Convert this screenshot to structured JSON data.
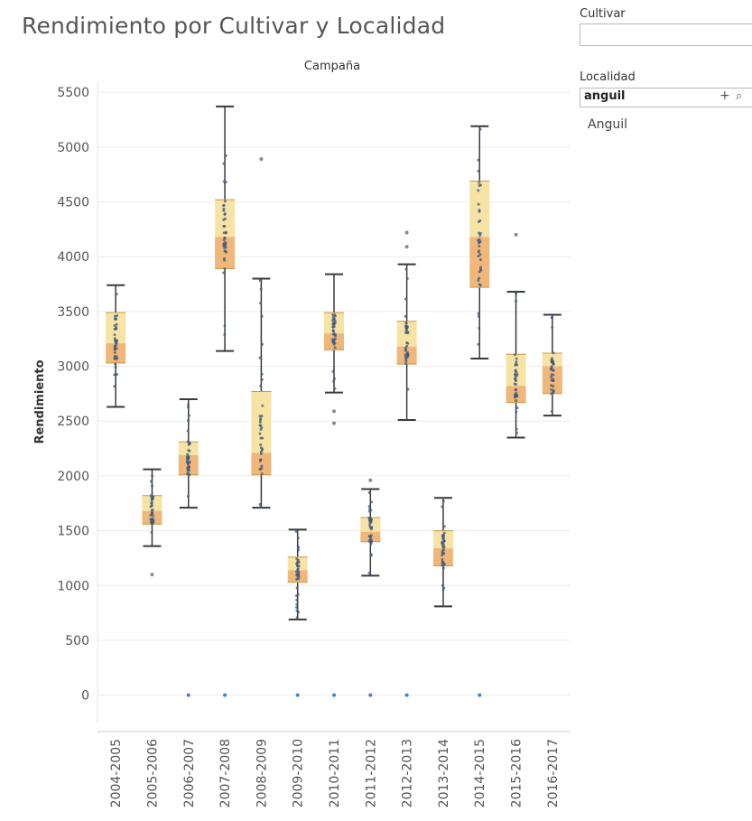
{
  "title": "Rendimiento por Cultivar y Localidad",
  "filters": {
    "cultivar": {
      "label": "Cultivar",
      "value": ""
    },
    "localidad": {
      "label": "Localidad",
      "value": "anguil",
      "add_icon": "plus-icon",
      "search_icon": "search-icon",
      "option": "Anguil"
    }
  },
  "colors": {
    "box_upper": "#f7e3a4",
    "box_lower": "#efb77a",
    "whisker": "#3a3a3a",
    "points": "#3d5a80",
    "grid": "#ececec"
  },
  "chart_data": {
    "type": "boxplot",
    "title": "Campaña",
    "ylabel": "Rendimiento",
    "ylim": [
      -250,
      5600
    ],
    "yticks": [
      0,
      500,
      1000,
      1500,
      2000,
      2500,
      3000,
      3500,
      4000,
      4500,
      5000,
      5500
    ],
    "grid": true,
    "categories": [
      "2004-2005",
      "2005-2006",
      "2006-2007",
      "2007-2008",
      "2008-2009",
      "2009-2010",
      "2010-2011",
      "2011-2012",
      "2012-2013",
      "2013-2014",
      "2014-2015",
      "2015-2016",
      "2016-2017"
    ],
    "boxes": [
      {
        "category": "2004-2005",
        "min": 2630,
        "q1": 3030,
        "median": 3210,
        "q3": 3490,
        "max": 3740,
        "outliers": []
      },
      {
        "category": "2005-2006",
        "min": 1360,
        "q1": 1560,
        "median": 1680,
        "q3": 1820,
        "max": 2060,
        "outliers": [
          1100
        ]
      },
      {
        "category": "2006-2007",
        "min": 1710,
        "q1": 2010,
        "median": 2190,
        "q3": 2310,
        "max": 2700,
        "outliers": [
          0
        ]
      },
      {
        "category": "2007-2008",
        "min": 3140,
        "q1": 3890,
        "median": 4180,
        "q3": 4520,
        "max": 5370,
        "outliers": [
          0
        ]
      },
      {
        "category": "2008-2009",
        "min": 1710,
        "q1": 2010,
        "median": 2210,
        "q3": 2770,
        "max": 3800,
        "outliers": [
          4890
        ]
      },
      {
        "category": "2009-2010",
        "min": 690,
        "q1": 1030,
        "median": 1140,
        "q3": 1260,
        "max": 1510,
        "outliers": [
          0
        ]
      },
      {
        "category": "2010-2011",
        "min": 2760,
        "q1": 3150,
        "median": 3300,
        "q3": 3490,
        "max": 3840,
        "outliers": [
          2590,
          2480,
          0
        ]
      },
      {
        "category": "2011-2012",
        "min": 1090,
        "q1": 1400,
        "median": 1490,
        "q3": 1620,
        "max": 1880,
        "outliers": [
          1960,
          0
        ]
      },
      {
        "category": "2012-2013",
        "min": 2510,
        "q1": 3020,
        "median": 3180,
        "q3": 3410,
        "max": 3930,
        "outliers": [
          4220,
          4090,
          0
        ]
      },
      {
        "category": "2013-2014",
        "min": 810,
        "q1": 1180,
        "median": 1340,
        "q3": 1500,
        "max": 1800,
        "outliers": []
      },
      {
        "category": "2014-2015",
        "min": 3070,
        "q1": 3720,
        "median": 4180,
        "q3": 4690,
        "max": 5190,
        "outliers": [
          0
        ]
      },
      {
        "category": "2015-2016",
        "min": 2350,
        "q1": 2670,
        "median": 2820,
        "q3": 3110,
        "max": 3680,
        "outliers": [
          4200
        ]
      },
      {
        "category": "2016-2017",
        "min": 2550,
        "q1": 2750,
        "median": 3000,
        "q3": 3120,
        "max": 3470,
        "outliers": []
      }
    ]
  }
}
